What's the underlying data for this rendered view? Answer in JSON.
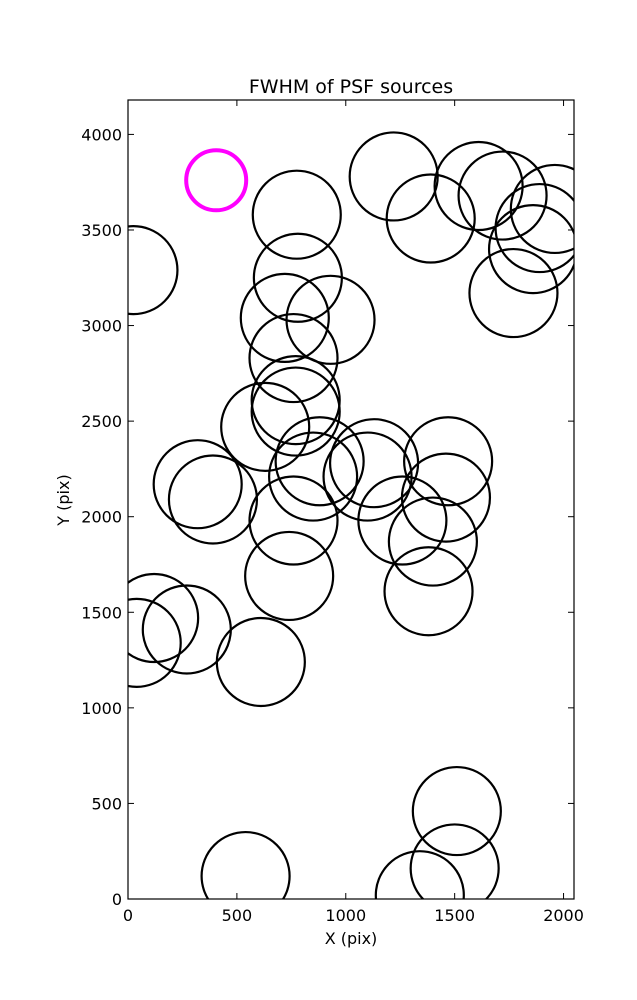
{
  "chart_data": {
    "type": "scatter",
    "title": "FWHM of PSF sources",
    "xlabel": "X (pix)",
    "ylabel": "Y (pix)",
    "xlim": [
      0,
      2048
    ],
    "ylim": [
      0,
      4180
    ],
    "xticks": [
      0,
      500,
      1000,
      1500,
      2000
    ],
    "yticks": [
      0,
      500,
      1000,
      1500,
      2000,
      2500,
      3000,
      3500,
      4000
    ],
    "xtick_labels": [
      "0",
      "500",
      "1000",
      "1500",
      "2000"
    ],
    "ytick_labels": [
      "0",
      "500",
      "1000",
      "1500",
      "2000",
      "2500",
      "3000",
      "3500",
      "4000"
    ],
    "grid": false,
    "marker": "open-circle",
    "marker_color": "#000000",
    "highlight_color": "#ff00ff",
    "series": [
      {
        "points": [
          {
            "x": 25,
            "y": 3290
          },
          {
            "x": 775,
            "y": 3580
          },
          {
            "x": 780,
            "y": 3250
          },
          {
            "x": 720,
            "y": 3040
          },
          {
            "x": 930,
            "y": 3030
          },
          {
            "x": 760,
            "y": 2830
          },
          {
            "x": 770,
            "y": 2610
          },
          {
            "x": 770,
            "y": 2550
          },
          {
            "x": 630,
            "y": 2470
          },
          {
            "x": 880,
            "y": 2290
          },
          {
            "x": 850,
            "y": 2210
          },
          {
            "x": 760,
            "y": 1980
          },
          {
            "x": 740,
            "y": 1690
          },
          {
            "x": 320,
            "y": 2170
          },
          {
            "x": 390,
            "y": 2090
          },
          {
            "x": 1130,
            "y": 2280
          },
          {
            "x": 1100,
            "y": 2210
          },
          {
            "x": 1260,
            "y": 1980
          },
          {
            "x": 1470,
            "y": 2290
          },
          {
            "x": 1460,
            "y": 2100
          },
          {
            "x": 1400,
            "y": 1870
          },
          {
            "x": 1380,
            "y": 1610
          },
          {
            "x": 120,
            "y": 1470
          },
          {
            "x": 40,
            "y": 1340
          },
          {
            "x": 270,
            "y": 1410
          },
          {
            "x": 610,
            "y": 1240
          },
          {
            "x": 1220,
            "y": 3780
          },
          {
            "x": 1390,
            "y": 3560
          },
          {
            "x": 1610,
            "y": 3730
          },
          {
            "x": 1720,
            "y": 3680
          },
          {
            "x": 1960,
            "y": 3610
          },
          {
            "x": 1890,
            "y": 3510
          },
          {
            "x": 1860,
            "y": 3400
          },
          {
            "x": 1770,
            "y": 3170
          },
          {
            "x": 1510,
            "y": 460
          },
          {
            "x": 1500,
            "y": 160
          },
          {
            "x": 1340,
            "y": 20
          },
          {
            "x": 540,
            "y": 120
          }
        ]
      },
      {
        "highlight": true,
        "points": [
          {
            "x": 405,
            "y": 3760
          }
        ]
      }
    ]
  }
}
